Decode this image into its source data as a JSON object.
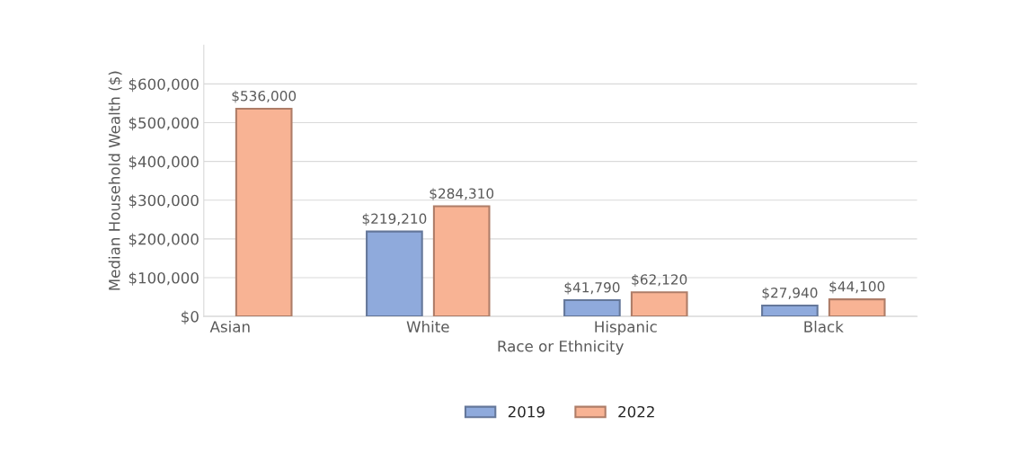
{
  "chart_data": {
    "type": "bar",
    "xlabel": "Race or Ethnicity",
    "ylabel": "Median Household Wealth ($)",
    "categories": [
      "Asian",
      "White",
      "Hispanic",
      "Black"
    ],
    "series": [
      {
        "name": "2019",
        "color": "#8faadc",
        "values": [
          null,
          219210,
          41790,
          27940
        ],
        "value_labels": [
          null,
          "$219,210",
          "$41,790",
          "$27,940"
        ]
      },
      {
        "name": "2022",
        "color": "#f8b394",
        "values": [
          536000,
          284310,
          62120,
          44100
        ],
        "value_labels": [
          "$536,000",
          "$284,310",
          "$62,120",
          "$44,100"
        ]
      }
    ],
    "ylim": [
      0,
      700000
    ],
    "yticks": [
      {
        "value": 0,
        "label": "$0"
      },
      {
        "value": 100000,
        "label": "$100,000"
      },
      {
        "value": 200000,
        "label": "$200,000"
      },
      {
        "value": 300000,
        "label": "$300,000"
      },
      {
        "value": 400000,
        "label": "$400,000"
      },
      {
        "value": 500000,
        "label": "$500,000"
      },
      {
        "value": 600000,
        "label": "$600,000"
      }
    ],
    "grid": "y",
    "legend": "bottom"
  }
}
